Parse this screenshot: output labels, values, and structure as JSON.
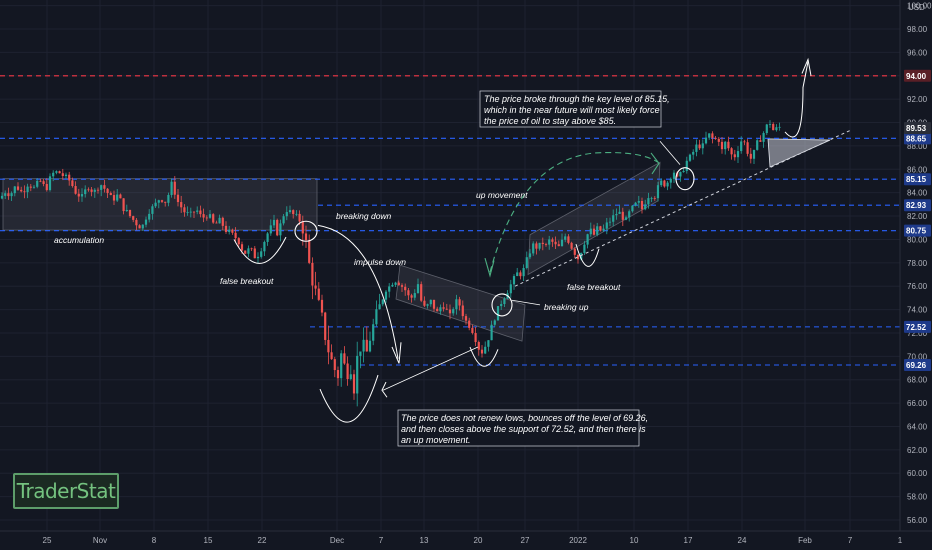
{
  "chart_data": {
    "type": "candlestick",
    "currency_label": "USD",
    "y_axis": {
      "range": [
        55,
        101
      ],
      "ticks": [
        "100.00",
        "98.00",
        "96.00",
        "94.00",
        "92.00",
        "90.00",
        "88.00",
        "86.00",
        "84.00",
        "82.00",
        "80.00",
        "78.00",
        "76.00",
        "74.00",
        "72.00",
        "70.00",
        "68.00",
        "66.00",
        "64.00",
        "62.00",
        "60.00",
        "58.00",
        "56.00"
      ],
      "scale": "linear"
    },
    "x_axis": {
      "ticks": [
        "25",
        "Nov",
        "8",
        "15",
        "22",
        "Dec",
        "7",
        "13",
        "20",
        "27",
        "2022",
        "10",
        "17",
        "24",
        "Feb",
        "7",
        "1"
      ]
    },
    "price_levels": [
      {
        "value": 94.0,
        "label": "94.00",
        "color": "#f23645",
        "style": "dashed-red"
      },
      {
        "value": 88.65,
        "label": "88.65",
        "color": "#2962ff",
        "style": "dashed-blue"
      },
      {
        "value": 85.15,
        "label": "85.15",
        "color": "#2962ff",
        "style": "dashed-blue"
      },
      {
        "value": 82.93,
        "label": "82.93",
        "color": "#2962ff",
        "style": "dashed-blue"
      },
      {
        "value": 80.75,
        "label": "80.75",
        "color": "#2962ff",
        "style": "dashed-blue"
      },
      {
        "value": 72.52,
        "label": "72.52",
        "color": "#2962ff",
        "style": "dashed-blue"
      },
      {
        "value": 69.26,
        "label": "69.26",
        "color": "#2962ff",
        "style": "dashed-blue"
      }
    ],
    "last_price": {
      "value": 89.53,
      "label": "89.53"
    },
    "annotations": {
      "accumulation": "accumulation",
      "false_breakout_1": "false breakout",
      "breaking_down": "breaking down",
      "impulse_down": "impulse down",
      "up_movement": "up movement",
      "breaking_up": "breaking up",
      "false_breakout_2": "false breakout",
      "note_top": [
        "The price broke through the key level of 85.15,",
        "which in the near future will most likely force",
        "the price of oil to stay above $85."
      ],
      "note_bottom": [
        "The price does not renew lows, bounces off the level of 69.26,",
        "and then closes above the support of 72.52, and then there is",
        "an up movement."
      ]
    },
    "price_path": [
      [
        0,
        83.5
      ],
      [
        6,
        84.2
      ],
      [
        10,
        83.8
      ],
      [
        16,
        84.6
      ],
      [
        22,
        84.0
      ],
      [
        28,
        84.8
      ],
      [
        34,
        84.4
      ],
      [
        40,
        85.0
      ],
      [
        46,
        84.3
      ],
      [
        52,
        85.6
      ],
      [
        58,
        85.8
      ],
      [
        64,
        85.4
      ],
      [
        70,
        85.0
      ],
      [
        76,
        84.0
      ],
      [
        82,
        83.6
      ],
      [
        88,
        84.6
      ],
      [
        94,
        84.0
      ],
      [
        100,
        84.8
      ],
      [
        106,
        84.2
      ],
      [
        112,
        83.4
      ],
      [
        118,
        83.8
      ],
      [
        124,
        82.6
      ],
      [
        130,
        82.0
      ],
      [
        136,
        81.4
      ],
      [
        142,
        81.0
      ],
      [
        148,
        82.4
      ],
      [
        154,
        82.8
      ],
      [
        160,
        83.6
      ],
      [
        166,
        83.2
      ],
      [
        172,
        84.8
      ],
      [
        178,
        83.2
      ],
      [
        184,
        82.4
      ],
      [
        190,
        82.0
      ],
      [
        196,
        82.6
      ],
      [
        202,
        81.8
      ],
      [
        208,
        82.2
      ],
      [
        214,
        81.2
      ],
      [
        220,
        81.6
      ],
      [
        226,
        80.8
      ],
      [
        232,
        80.4
      ],
      [
        238,
        80.0
      ],
      [
        244,
        78.8
      ],
      [
        250,
        79.2
      ],
      [
        256,
        78.4
      ],
      [
        262,
        79.4
      ],
      [
        268,
        80.6
      ],
      [
        274,
        81.4
      ],
      [
        278,
        80.4
      ],
      [
        282,
        81.8
      ],
      [
        286,
        82.6
      ],
      [
        292,
        82.2
      ],
      [
        298,
        81.8
      ],
      [
        302,
        81.4
      ],
      [
        306,
        79.6
      ],
      [
        310,
        77.4
      ],
      [
        314,
        76.0
      ],
      [
        318,
        74.6
      ],
      [
        322,
        73.2
      ],
      [
        326,
        71.4
      ],
      [
        330,
        70.0
      ],
      [
        334,
        69.0
      ],
      [
        338,
        68.4
      ],
      [
        342,
        70.6
      ],
      [
        346,
        68.2
      ],
      [
        350,
        69.6
      ],
      [
        354,
        67.4
      ],
      [
        358,
        70.4
      ],
      [
        362,
        71.2
      ],
      [
        366,
        70.0
      ],
      [
        370,
        71.6
      ],
      [
        374,
        72.8
      ],
      [
        378,
        73.8
      ],
      [
        382,
        74.8
      ],
      [
        386,
        75.8
      ],
      [
        390,
        76.0
      ],
      [
        394,
        76.6
      ],
      [
        398,
        76.4
      ],
      [
        402,
        76.0
      ],
      [
        406,
        75.6
      ],
      [
        410,
        74.8
      ],
      [
        414,
        75.4
      ],
      [
        418,
        76.2
      ],
      [
        422,
        74.4
      ],
      [
        426,
        74.0
      ],
      [
        430,
        74.8
      ],
      [
        434,
        74.2
      ],
      [
        438,
        73.6
      ],
      [
        442,
        74.6
      ],
      [
        446,
        74.0
      ],
      [
        450,
        73.4
      ],
      [
        454,
        74.4
      ],
      [
        458,
        74.8
      ],
      [
        462,
        73.8
      ],
      [
        466,
        73.0
      ],
      [
        470,
        72.6
      ],
      [
        474,
        72.0
      ],
      [
        478,
        70.8
      ],
      [
        482,
        70.4
      ],
      [
        486,
        71.0
      ],
      [
        490,
        72.0
      ],
      [
        494,
        73.2
      ],
      [
        498,
        74.0
      ],
      [
        502,
        74.8
      ],
      [
        506,
        75.4
      ],
      [
        510,
        76.0
      ],
      [
        514,
        76.6
      ],
      [
        518,
        77.2
      ],
      [
        522,
        77.0
      ],
      [
        526,
        78.0
      ],
      [
        530,
        79.0
      ],
      [
        534,
        79.6
      ],
      [
        538,
        79.2
      ],
      [
        542,
        79.8
      ],
      [
        546,
        79.4
      ],
      [
        550,
        80.0
      ],
      [
        554,
        79.6
      ],
      [
        558,
        79.2
      ],
      [
        562,
        79.8
      ],
      [
        566,
        80.4
      ],
      [
        570,
        79.6
      ],
      [
        574,
        79.0
      ],
      [
        578,
        78.4
      ],
      [
        582,
        79.2
      ],
      [
        586,
        80.2
      ],
      [
        590,
        80.8
      ],
      [
        594,
        80.4
      ],
      [
        598,
        81.0
      ],
      [
        602,
        80.6
      ],
      [
        606,
        81.2
      ],
      [
        610,
        81.6
      ],
      [
        614,
        82.0
      ],
      [
        618,
        82.4
      ],
      [
        622,
        82.0
      ],
      [
        626,
        81.6
      ],
      [
        630,
        82.4
      ],
      [
        634,
        82.8
      ],
      [
        638,
        83.2
      ],
      [
        642,
        82.6
      ],
      [
        646,
        83.4
      ],
      [
        650,
        84.0
      ],
      [
        654,
        83.6
      ],
      [
        658,
        84.4
      ],
      [
        662,
        85.0
      ],
      [
        666,
        84.6
      ],
      [
        670,
        85.4
      ],
      [
        674,
        85.8
      ],
      [
        678,
        85.0
      ],
      [
        682,
        85.8
      ],
      [
        686,
        86.6
      ],
      [
        690,
        87.0
      ],
      [
        694,
        87.6
      ],
      [
        698,
        88.2
      ],
      [
        702,
        87.8
      ],
      [
        706,
        88.6
      ],
      [
        710,
        89.0
      ],
      [
        714,
        88.4
      ],
      [
        718,
        88.8
      ],
      [
        722,
        87.6
      ],
      [
        726,
        88.4
      ],
      [
        730,
        87.4
      ],
      [
        734,
        87.0
      ],
      [
        738,
        87.8
      ],
      [
        742,
        88.6
      ],
      [
        746,
        88.0
      ],
      [
        750,
        86.8
      ],
      [
        754,
        87.4
      ],
      [
        758,
        88.4
      ],
      [
        762,
        88.8
      ],
      [
        766,
        89.6
      ],
      [
        770,
        90.0
      ],
      [
        774,
        89.2
      ],
      [
        778,
        89.6
      ]
    ]
  },
  "watermark": {
    "text": "TraderStat"
  },
  "colors": {
    "background": "#131722",
    "up": "#26a69a",
    "down": "#ef5350",
    "grid": "#1e2230",
    "axis_text": "#b2b5be",
    "level_blue": "#2962ff",
    "level_red": "#f23645",
    "annotation": "#ffffff",
    "arrow_green": "#4caf82",
    "zone_fill": "rgba(120,123,134,0.18)"
  }
}
